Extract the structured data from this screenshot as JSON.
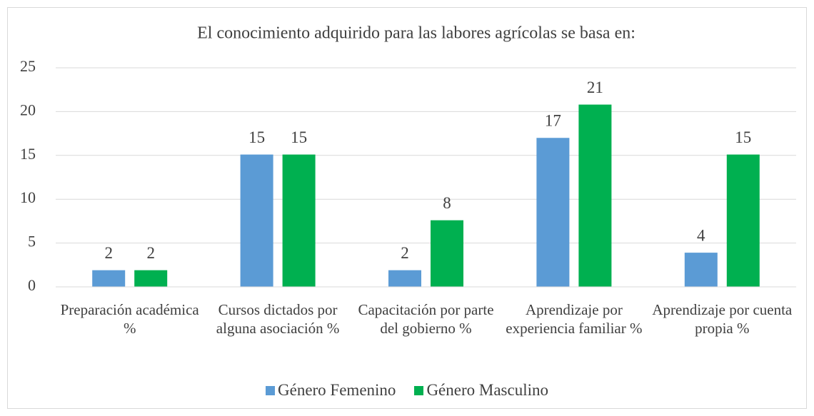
{
  "chart_data": {
    "type": "bar",
    "title": "El conocimiento adquirido para las labores agrícolas se basa en:",
    "categories": [
      "Preparación académica %",
      "Cursos dictados por alguna asociación %",
      "Capacitación por parte del gobierno %",
      "Aprendizaje por experiencia familiar %",
      "Aprendizaje por cuenta propia %"
    ],
    "series": [
      {
        "name": "Género Femenino",
        "color": "#5b9bd5",
        "values": [
          1.9,
          15.1,
          1.9,
          17.0,
          3.9
        ],
        "value_labels": [
          "2",
          "15",
          "2",
          "17",
          "4"
        ]
      },
      {
        "name": "Género Masculino",
        "color": "#00b050",
        "values": [
          1.9,
          15.1,
          7.6,
          20.8,
          15.1
        ],
        "value_labels": [
          "2",
          "15",
          "8",
          "21",
          "15"
        ]
      }
    ],
    "ylim": [
      0,
      25
    ],
    "yticks": [
      0,
      5,
      10,
      15,
      20,
      25
    ],
    "grid": true,
    "legend": "bottom"
  }
}
